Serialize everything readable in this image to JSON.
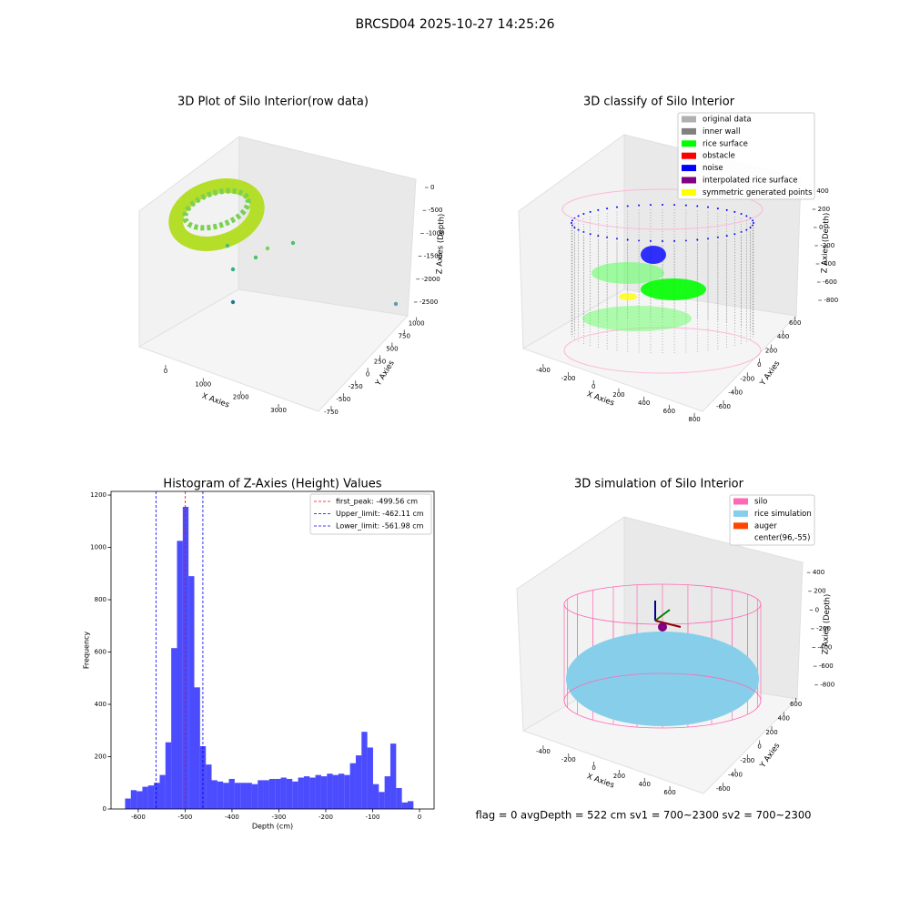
{
  "title": "BRCSD04 2025-10-27 14:25:26",
  "footer": "flag = 0     avgDepth = 522 cm  sv1 = 700~2300  sv2 = 700~2300",
  "chart_data": [
    {
      "type": "scatter3d",
      "title": "3D Plot of Silo Interior(row data)",
      "xlabel": "X Axies",
      "ylabel": "Y Axies",
      "zlabel": "Z Axies (Depth)",
      "xlim": [
        -700,
        3700
      ],
      "xticks": [
        0,
        1000,
        2000,
        3000
      ],
      "ylim": [
        -850,
        1100
      ],
      "yticks": [
        -750,
        -500,
        -250,
        0,
        250,
        500,
        750,
        1000
      ],
      "zlim": [
        -2700,
        100
      ],
      "zticks": [
        -2500,
        -2000,
        -1500,
        -1000,
        -500,
        0
      ]
    },
    {
      "type": "scatter3d",
      "title": "3D classify of Silo Interior",
      "xlabel": "X Axies",
      "ylabel": "Y Axies",
      "zlabel": "Z Axies (Depth)",
      "xlim": [
        -500,
        850
      ],
      "xticks": [
        -400,
        -200,
        0,
        200,
        400,
        600,
        800
      ],
      "ylim": [
        -700,
        650
      ],
      "yticks": [
        -600,
        -400,
        -200,
        0,
        200,
        400,
        600
      ],
      "zlim": [
        -900,
        450
      ],
      "zticks": [
        -800,
        -600,
        -400,
        -200,
        0,
        200,
        400
      ],
      "legend": "upper right",
      "series": [
        {
          "name": "original data",
          "color": "#b0b0b0"
        },
        {
          "name": "inner wall",
          "color": "#808080"
        },
        {
          "name": "rice surface",
          "color": "#00ff00"
        },
        {
          "name": "obstacle",
          "color": "#ff0000"
        },
        {
          "name": "noise",
          "color": "#0000ff"
        },
        {
          "name": "interpolated rice surface",
          "color": "#800080"
        },
        {
          "name": "symmetric generated points",
          "color": "#ffff00"
        }
      ]
    },
    {
      "type": "histogram",
      "title": "Histogram of Z-Axies (Height) Values",
      "xlabel": "Depth (cm)",
      "ylabel": "Frequency",
      "color": "#0000ff",
      "alpha": 0.7,
      "legend": "upper right",
      "xlim": [
        -658,
        31
      ],
      "xticks": [
        -600,
        -500,
        -400,
        -300,
        -200,
        -100,
        0
      ],
      "ylim": [
        0,
        1214
      ],
      "yticks": [
        0,
        200,
        400,
        600,
        800,
        1000,
        1200
      ],
      "bins": [
        -628,
        -615.7,
        -603.4,
        -591.1,
        -578.8,
        -566.5,
        -554.2,
        -541.9,
        -529.6,
        -517.3,
        -505.0,
        -492.7,
        -480.4,
        -468.1,
        -455.8,
        -443.5,
        -431.2,
        -418.9,
        -406.6,
        -394.3,
        -382.0,
        -369.7,
        -357.4,
        -345.1,
        -332.8,
        -320.5,
        -308.2,
        -295.9,
        -283.6,
        -271.3,
        -259.0,
        -246.7,
        -234.4,
        -222.1,
        -209.8,
        -197.5,
        -185.2,
        -172.9,
        -160.6,
        -148.3,
        -136.0,
        -123.7,
        -111.4,
        -99.1,
        -86.8,
        -74.5,
        -62.2,
        -49.9,
        -37.6,
        -25.3,
        -13.0
      ],
      "values": [
        40,
        72,
        68,
        85,
        90,
        100,
        130,
        255,
        615,
        1025,
        1155,
        890,
        465,
        240,
        170,
        110,
        105,
        100,
        115,
        100,
        100,
        100,
        95,
        110,
        110,
        115,
        115,
        120,
        115,
        105,
        120,
        125,
        120,
        130,
        125,
        135,
        130,
        135,
        130,
        175,
        205,
        295,
        235,
        95,
        65,
        125,
        250,
        80,
        25,
        30
      ],
      "lines": [
        {
          "label": "first_peak: -499.56 cm",
          "value": -499.56,
          "color": "#ff0000",
          "linestyle": "dashed"
        },
        {
          "label": "Upper_limit: -462.11 cm",
          "value": -462.11,
          "color": "#0000ff",
          "linestyle": "dashed"
        },
        {
          "label": "Lower_limit: -561.98 cm",
          "value": -561.98,
          "color": "#0000ff",
          "linestyle": "dashed"
        }
      ]
    },
    {
      "type": "scatter3d",
      "title": "3D simulation of Silo Interior",
      "xlabel": "X Axies",
      "ylabel": "Y Axies",
      "zlabel": "Z Axies (Depth)",
      "xlim": [
        -500,
        700
      ],
      "xticks": [
        -400,
        -200,
        0,
        200,
        400,
        600
      ],
      "ylim": [
        -700,
        650
      ],
      "yticks": [
        -600,
        -400,
        -200,
        0,
        200,
        400,
        600
      ],
      "zlim": [
        -900,
        450
      ],
      "zticks": [
        -800,
        -600,
        -400,
        -200,
        0,
        200,
        400
      ],
      "legend": "upper right",
      "series": [
        {
          "name": "silo",
          "color": "#ff69b4"
        },
        {
          "name": "rice simulation",
          "color": "#87ceeb"
        },
        {
          "name": "auger",
          "color": "#ff4500"
        },
        {
          "name": "center(96,-55)",
          "color": "#ffffff"
        }
      ]
    }
  ]
}
